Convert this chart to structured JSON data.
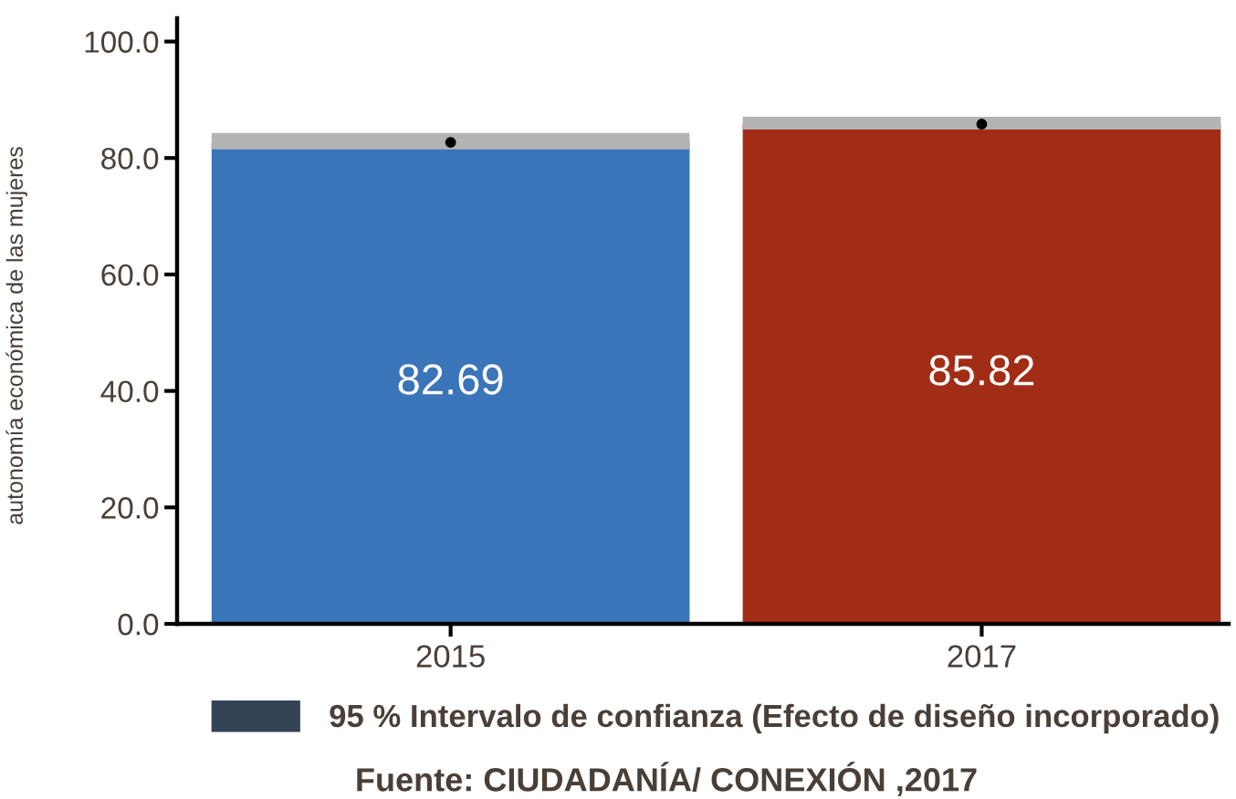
{
  "chart_data": {
    "type": "bar",
    "categories": [
      "2015",
      "2017"
    ],
    "series": [
      {
        "name": "95 % Intervalo de confianza (Efecto de diseño incorporado)",
        "color": "#334457",
        "colors": [
          "#3a74b9",
          "#a22d17"
        ],
        "values": [
          82.69,
          85.82
        ],
        "errors": [
          [
            81.5,
            84.3
          ],
          [
            84.9,
            87.1
          ]
        ]
      },
      {
        "type": "scatter",
        "values": [
          82.69,
          85.82
        ],
        "value_labels": [
          null,
          null
        ],
        "color": "#000000",
        "marker": "circle"
      }
    ],
    "ylabel": "autonomía económica de las mujeres",
    "ylim": [
      0,
      104
    ],
    "yticks": [
      {
        "value": 0,
        "label": "0.0"
      },
      {
        "value": 20,
        "label": "20.0"
      },
      {
        "value": 40,
        "label": "40.0"
      },
      {
        "value": 60,
        "label": "60.0"
      },
      {
        "value": 80,
        "label": "80.0"
      },
      {
        "value": 100,
        "label": "100.0"
      }
    ],
    "data_labels": true,
    "legend": "bottom",
    "annotations": [
      "Fuente: CIUDADANÍA/ CONEXIÓN ,2017"
    ]
  }
}
